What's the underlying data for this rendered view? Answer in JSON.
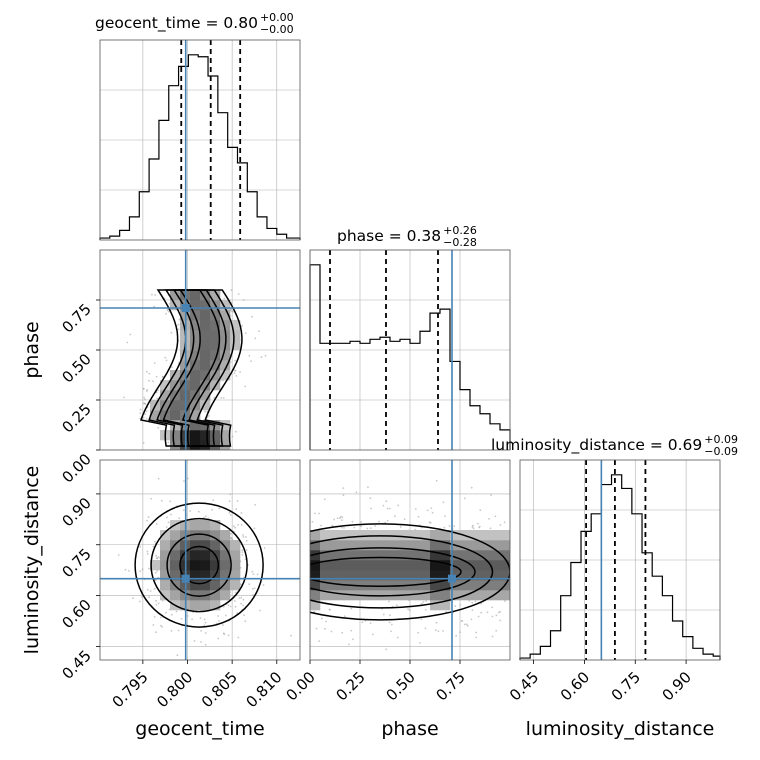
{
  "chart_data": {
    "type": "corner",
    "parameters": [
      {
        "name": "geocent_time",
        "label": "geocent_time",
        "median": 0.8,
        "plus": 0.0,
        "minus": 0.0,
        "range": [
          0.7902,
          0.8126
        ],
        "ticks": [
          "0.795",
          "0.800",
          "0.805",
          "0.810"
        ],
        "tick_values": [
          0.795,
          0.8,
          0.805,
          0.81
        ],
        "quantiles": [
          0.7993,
          0.8026,
          0.8059
        ],
        "truth": 0.7998
      },
      {
        "name": "phase",
        "label": "phase",
        "median": 0.38,
        "plus": 0.26,
        "minus": 0.28,
        "range": [
          0.0,
          1.0
        ],
        "ticks": [
          "0.00",
          "0.25",
          "0.50",
          "0.75"
        ],
        "tick_values": [
          0.0,
          0.25,
          0.5,
          0.75
        ],
        "quantiles": [
          0.1,
          0.38,
          0.64
        ],
        "truth": 0.71
      },
      {
        "name": "luminosity_distance",
        "label": "luminosity_distance",
        "median": 0.69,
        "plus": 0.09,
        "minus": 0.09,
        "range": [
          0.41,
          1.0
        ],
        "ticks": [
          "0.45",
          "0.60",
          "0.75",
          "0.90"
        ],
        "tick_values": [
          0.45,
          0.6,
          0.75,
          0.9
        ],
        "quantiles": [
          0.605,
          0.69,
          0.78
        ],
        "truth": 0.65
      }
    ],
    "titles": {
      "geocent_time": {
        "prefix": "geocent_time = 0.80",
        "sup": "+0.00",
        "sub": "−0.00"
      },
      "phase": {
        "prefix": "phase = 0.38",
        "sup": "+0.26",
        "sub": "−0.28"
      },
      "luminosity_distance": {
        "prefix": "luminosity_distance = 0.69",
        "sup": "+0.09",
        "sub": "−0.09"
      }
    },
    "y_axis_ticks": {
      "phase": [
        "0.00",
        "0.25",
        "0.50",
        "0.75"
      ],
      "luminosity_distance": [
        "0.45",
        "0.60",
        "0.75",
        "0.90"
      ]
    },
    "histograms": {
      "geocent_time": {
        "bin_edges": [
          0.7902,
          0.7913,
          0.7924,
          0.7935,
          0.7946,
          0.7957,
          0.7968,
          0.7979,
          0.799,
          0.8001,
          0.8012,
          0.8023,
          0.8034,
          0.8045,
          0.8056,
          0.8067,
          0.8078,
          0.8089,
          0.81,
          0.8111,
          0.8126
        ],
        "counts": [
          1,
          2,
          5,
          12,
          25,
          42,
          62,
          80,
          90,
          96,
          95,
          85,
          66,
          48,
          40,
          25,
          12,
          6,
          3,
          1
        ]
      },
      "phase": {
        "bin_edges": [
          0.0,
          0.05,
          0.1,
          0.15,
          0.2,
          0.25,
          0.3,
          0.35,
          0.4,
          0.45,
          0.5,
          0.55,
          0.6,
          0.65,
          0.7,
          0.75,
          0.8,
          0.85,
          0.9,
          0.95,
          1.0
        ],
        "counts": [
          92,
          53,
          53,
          53,
          54,
          53,
          55,
          56,
          54,
          55,
          53,
          59,
          68,
          70,
          44,
          30,
          22,
          18,
          13,
          10
        ]
      },
      "luminosity_distance": {
        "bin_edges": [
          0.41,
          0.44,
          0.47,
          0.5,
          0.53,
          0.56,
          0.59,
          0.62,
          0.65,
          0.68,
          0.71,
          0.74,
          0.77,
          0.8,
          0.83,
          0.86,
          0.89,
          0.92,
          0.95,
          0.98,
          1.0
        ],
        "counts": [
          1,
          3,
          7,
          15,
          33,
          50,
          66,
          75,
          90,
          95,
          88,
          75,
          55,
          43,
          33,
          20,
          12,
          6,
          3,
          2
        ]
      }
    },
    "grid": true,
    "colors": {
      "truth": "#4682b4",
      "line": "#000000",
      "grid": "#b0b0b0",
      "scatter": "#9a9a9a"
    }
  }
}
